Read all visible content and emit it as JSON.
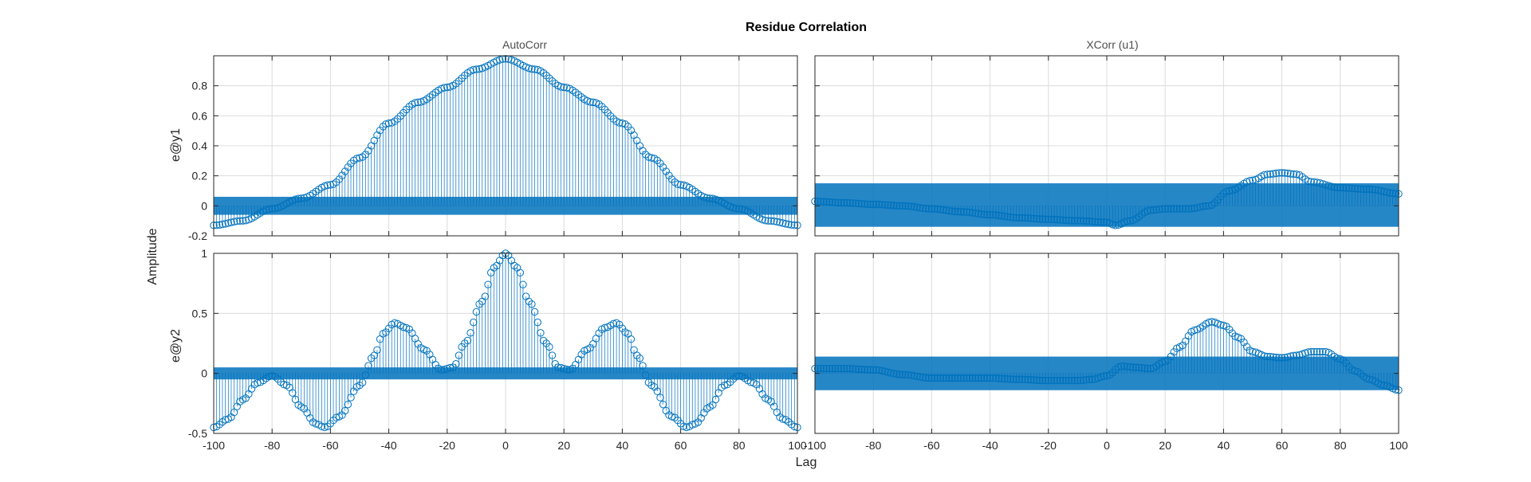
{
  "figure": {
    "title": "Residue Correlation",
    "ylabel": "Amplitude",
    "xlabel": "Lag"
  },
  "colors": {
    "series": "#0072BD",
    "band": "#0072BD",
    "grid": "#dcdcdc",
    "axis": "#262626"
  },
  "chart_data": [
    {
      "type": "stem",
      "title": "AutoCorr",
      "ylabel": "e@y1",
      "xlim": [
        -100,
        100
      ],
      "ylim": [
        -0.2,
        1.0
      ],
      "xticks": [
        -100,
        -80,
        -60,
        -40,
        -20,
        0,
        20,
        40,
        60,
        80,
        100
      ],
      "yticks": [
        -0.2,
        0,
        0.2,
        0.4,
        0.6,
        0.8
      ],
      "ytick_labels": [
        "-0.2",
        "0",
        "0.2",
        "0.4",
        "0.6",
        "0.8"
      ],
      "show_xtick_labels": false,
      "confidence_band": [
        -0.06,
        0.06
      ],
      "x_range": [
        -100,
        100
      ],
      "key_points": [
        [
          -100,
          -0.13
        ],
        [
          -90,
          -0.1
        ],
        [
          -80,
          -0.02
        ],
        [
          -70,
          0.05
        ],
        [
          -60,
          0.14
        ],
        [
          -50,
          0.32
        ],
        [
          -40,
          0.55
        ],
        [
          -30,
          0.69
        ],
        [
          -20,
          0.79
        ],
        [
          -10,
          0.91
        ],
        [
          0,
          0.98
        ],
        [
          10,
          0.91
        ],
        [
          20,
          0.79
        ],
        [
          30,
          0.69
        ],
        [
          40,
          0.55
        ],
        [
          50,
          0.32
        ],
        [
          60,
          0.14
        ],
        [
          70,
          0.05
        ],
        [
          80,
          -0.02
        ],
        [
          90,
          -0.1
        ],
        [
          100,
          -0.13
        ]
      ],
      "grid": true
    },
    {
      "type": "stem",
      "title": "XCorr (u1)",
      "ylabel": "",
      "xlim": [
        -100,
        100
      ],
      "ylim": [
        -0.2,
        1.0
      ],
      "xticks": [
        -100,
        -80,
        -60,
        -40,
        -20,
        0,
        20,
        40,
        60,
        80,
        100
      ],
      "yticks": [
        -0.2,
        0,
        0.2,
        0.4,
        0.6,
        0.8
      ],
      "ytick_labels": [],
      "show_xtick_labels": false,
      "confidence_band": [
        -0.14,
        0.15
      ],
      "x_range": [
        -100,
        100
      ],
      "key_points": [
        [
          -100,
          0.03
        ],
        [
          -90,
          0.02
        ],
        [
          -80,
          0.01
        ],
        [
          -70,
          0.0
        ],
        [
          -60,
          -0.02
        ],
        [
          -50,
          -0.04
        ],
        [
          -40,
          -0.06
        ],
        [
          -30,
          -0.08
        ],
        [
          -20,
          -0.09
        ],
        [
          -10,
          -0.1
        ],
        [
          0,
          -0.11
        ],
        [
          3,
          -0.13
        ],
        [
          8,
          -0.1
        ],
        [
          15,
          -0.03
        ],
        [
          20,
          -0.02
        ],
        [
          28,
          -0.02
        ],
        [
          35,
          0.0
        ],
        [
          42,
          0.1
        ],
        [
          50,
          0.17
        ],
        [
          55,
          0.21
        ],
        [
          60,
          0.22
        ],
        [
          65,
          0.21
        ],
        [
          70,
          0.16
        ],
        [
          80,
          0.12
        ],
        [
          90,
          0.11
        ],
        [
          100,
          0.08
        ]
      ],
      "grid": true
    },
    {
      "type": "stem",
      "title": "",
      "ylabel": "e@y2",
      "xlim": [
        -100,
        100
      ],
      "ylim": [
        -0.5,
        1.0
      ],
      "xticks": [
        -100,
        -80,
        -60,
        -40,
        -20,
        0,
        20,
        40,
        60,
        80,
        100
      ],
      "yticks": [
        -0.5,
        0,
        0.5,
        1
      ],
      "ytick_labels": [
        "-0.5",
        "0",
        "0.5",
        "1"
      ],
      "show_xtick_labels": true,
      "confidence_band": [
        -0.05,
        0.05
      ],
      "x_range": [
        -100,
        100
      ],
      "key_points": [
        [
          -100,
          -0.45
        ],
        [
          -95,
          -0.38
        ],
        [
          -90,
          -0.22
        ],
        [
          -85,
          -0.08
        ],
        [
          -80,
          -0.02
        ],
        [
          -75,
          -0.1
        ],
        [
          -70,
          -0.28
        ],
        [
          -65,
          -0.42
        ],
        [
          -62,
          -0.45
        ],
        [
          -57,
          -0.36
        ],
        [
          -50,
          -0.1
        ],
        [
          -45,
          0.15
        ],
        [
          -42,
          0.33
        ],
        [
          -38,
          0.42
        ],
        [
          -34,
          0.38
        ],
        [
          -28,
          0.2
        ],
        [
          -22,
          0.03
        ],
        [
          -18,
          0.05
        ],
        [
          -14,
          0.25
        ],
        [
          -8,
          0.6
        ],
        [
          -4,
          0.88
        ],
        [
          0,
          1.0
        ],
        [
          4,
          0.88
        ],
        [
          8,
          0.6
        ],
        [
          14,
          0.25
        ],
        [
          18,
          0.05
        ],
        [
          22,
          0.03
        ],
        [
          28,
          0.2
        ],
        [
          34,
          0.38
        ],
        [
          38,
          0.42
        ],
        [
          42,
          0.33
        ],
        [
          45,
          0.15
        ],
        [
          50,
          -0.1
        ],
        [
          57,
          -0.36
        ],
        [
          62,
          -0.45
        ],
        [
          65,
          -0.42
        ],
        [
          70,
          -0.28
        ],
        [
          75,
          -0.1
        ],
        [
          80,
          -0.02
        ],
        [
          85,
          -0.08
        ],
        [
          90,
          -0.22
        ],
        [
          95,
          -0.38
        ],
        [
          100,
          -0.45
        ]
      ],
      "grid": true
    },
    {
      "type": "stem",
      "title": "",
      "ylabel": "",
      "xlim": [
        -100,
        100
      ],
      "ylim": [
        -0.5,
        1.0
      ],
      "xticks": [
        -100,
        -80,
        -60,
        -40,
        -20,
        0,
        20,
        40,
        60,
        80,
        100
      ],
      "yticks": [
        -0.5,
        0,
        0.5,
        1
      ],
      "ytick_labels": [],
      "show_xtick_labels": true,
      "confidence_band": [
        -0.14,
        0.14
      ],
      "x_range": [
        -100,
        100
      ],
      "key_points": [
        [
          -100,
          0.04
        ],
        [
          -90,
          0.04
        ],
        [
          -80,
          0.03
        ],
        [
          -70,
          -0.01
        ],
        [
          -60,
          -0.04
        ],
        [
          -50,
          -0.04
        ],
        [
          -40,
          -0.04
        ],
        [
          -30,
          -0.05
        ],
        [
          -20,
          -0.06
        ],
        [
          -10,
          -0.06
        ],
        [
          -5,
          -0.05
        ],
        [
          0,
          -0.02
        ],
        [
          5,
          0.06
        ],
        [
          10,
          0.05
        ],
        [
          15,
          0.04
        ],
        [
          20,
          0.1
        ],
        [
          25,
          0.22
        ],
        [
          30,
          0.36
        ],
        [
          36,
          0.43
        ],
        [
          40,
          0.4
        ],
        [
          45,
          0.3
        ],
        [
          50,
          0.18
        ],
        [
          55,
          0.14
        ],
        [
          60,
          0.13
        ],
        [
          65,
          0.15
        ],
        [
          70,
          0.18
        ],
        [
          75,
          0.18
        ],
        [
          80,
          0.12
        ],
        [
          85,
          0.02
        ],
        [
          90,
          -0.05
        ],
        [
          95,
          -0.1
        ],
        [
          100,
          -0.14
        ]
      ],
      "grid": true
    }
  ]
}
